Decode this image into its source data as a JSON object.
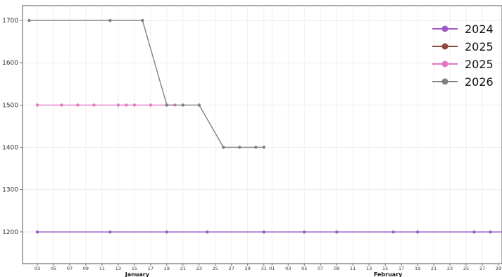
{
  "chart_data": {
    "type": "line",
    "title": "",
    "xlabel": "",
    "ylabel": "",
    "x_type": "date",
    "xlim": [
      "2024-01-01",
      "2024-02-29"
    ],
    "ylim": [
      1125,
      1735
    ],
    "yticks": [
      1200,
      1300,
      1400,
      1500,
      1600,
      1700
    ],
    "xtick_labels": [
      "03",
      "05",
      "07",
      "09",
      "11",
      "13",
      "15",
      "17",
      "19",
      "21",
      "23",
      "25",
      "27",
      "29",
      "31",
      "01",
      "03",
      "05",
      "07",
      "09",
      "11",
      "13",
      "15",
      "17",
      "19",
      "21",
      "23",
      "25",
      "27",
      "29"
    ],
    "xtick_dates": [
      "2024-01-03",
      "2024-01-05",
      "2024-01-07",
      "2024-01-09",
      "2024-01-11",
      "2024-01-13",
      "2024-01-15",
      "2024-01-17",
      "2024-01-19",
      "2024-01-21",
      "2024-01-23",
      "2024-01-25",
      "2024-01-27",
      "2024-01-29",
      "2024-01-31",
      "2024-02-01",
      "2024-02-03",
      "2024-02-05",
      "2024-02-07",
      "2024-02-09",
      "2024-02-11",
      "2024-02-13",
      "2024-02-15",
      "2024-02-17",
      "2024-02-19",
      "2024-02-21",
      "2024-02-23",
      "2024-02-25",
      "2024-02-27",
      "2024-02-29"
    ],
    "month_labels": [
      {
        "text": "January",
        "date": "2024-01-15"
      },
      {
        "text": "February",
        "date": "2024-02-15"
      }
    ],
    "grid": true,
    "legend_position": "top-right",
    "series": [
      {
        "name": "2024",
        "color": "#9b59c6",
        "points": [
          [
            "2024-01-03",
            1200
          ],
          [
            "2024-01-12",
            1200
          ],
          [
            "2024-01-19",
            1200
          ],
          [
            "2024-01-24",
            1200
          ],
          [
            "2024-01-31",
            1200
          ],
          [
            "2024-02-05",
            1200
          ],
          [
            "2024-02-09",
            1200
          ],
          [
            "2024-02-16",
            1200
          ],
          [
            "2024-02-19",
            1200
          ],
          [
            "2024-02-26",
            1200
          ],
          [
            "2024-02-28",
            1200
          ],
          [
            "2024-03-01",
            1200
          ]
        ]
      },
      {
        "name": "2025",
        "color": "#8c4a3c",
        "points": []
      },
      {
        "name": "2025",
        "color": "#e377c2",
        "points": [
          [
            "2024-01-03",
            1500
          ],
          [
            "2024-01-06",
            1500
          ],
          [
            "2024-01-08",
            1500
          ],
          [
            "2024-01-10",
            1500
          ],
          [
            "2024-01-13",
            1500
          ],
          [
            "2024-01-14",
            1500
          ],
          [
            "2024-01-15",
            1500
          ],
          [
            "2024-01-17",
            1500
          ],
          [
            "2024-01-19",
            1500
          ],
          [
            "2024-01-20",
            1500
          ]
        ]
      },
      {
        "name": "2026",
        "color": "#808080",
        "points": [
          [
            "2024-01-02",
            1700
          ],
          [
            "2024-01-12",
            1700
          ],
          [
            "2024-01-16",
            1700
          ],
          [
            "2024-01-19",
            1500
          ],
          [
            "2024-01-21",
            1500
          ],
          [
            "2024-01-23",
            1500
          ],
          [
            "2024-01-26",
            1400
          ],
          [
            "2024-01-28",
            1400
          ],
          [
            "2024-01-30",
            1400
          ],
          [
            "2024-01-31",
            1400
          ]
        ]
      }
    ]
  }
}
